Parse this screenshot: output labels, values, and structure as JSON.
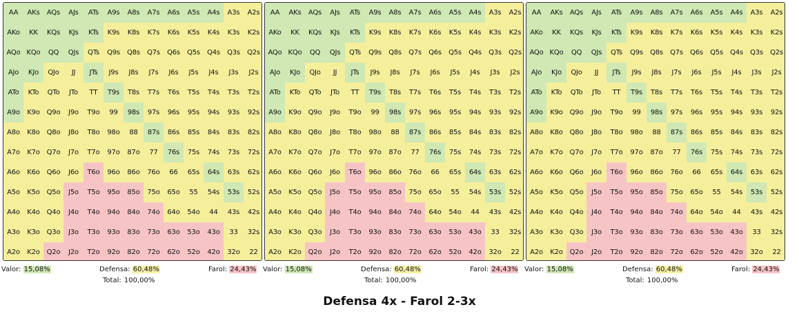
{
  "ranks": [
    "A",
    "K",
    "Q",
    "J",
    "T",
    "9",
    "8",
    "7",
    "6",
    "5",
    "4",
    "3",
    "2"
  ],
  "colors": {
    "valor": "#cfe8b4",
    "defensa": "#f5ef9c",
    "farol": "#f7c4c6",
    "border": "#333333"
  },
  "legend_keys": {
    "v": "valor",
    "d": "defensa",
    "f": "farol"
  },
  "color_map": [
    "vvvvvvvvvvvdd",
    "vvvvvdddddddd",
    "vvvvddddddddd",
    "vvddvdddddddd",
    "vddddvddddddd",
    "vdddddvdddddd",
    "dddddddvddddd",
    "ddddddddvdddd",
    "ddddfdddddvdd",
    "dddffffddddvd",
    "dddfffffddddd",
    "dddffffffffdd",
    "ddfffffffffdd"
  ],
  "panels": [
    {
      "stats": {
        "valor_label": "Valor:",
        "valor_value": "15,08%",
        "defensa_label": "Defensa:",
        "defensa_value": "60,48%",
        "farol_label": "Farol:",
        "farol_value": "24,43%",
        "total_label": "Total:",
        "total_value": "100,00%"
      }
    },
    {
      "stats": {
        "valor_label": "Valor:",
        "valor_value": "15,08%",
        "defensa_label": "Defensa:",
        "defensa_value": "60,48%",
        "farol_label": "Farol:",
        "farol_value": "24,43%",
        "total_label": "Total:",
        "total_value": "100,00%"
      }
    },
    {
      "stats": {
        "valor_label": "Valor:",
        "valor_value": "15,08%",
        "defensa_label": "Defensa:",
        "defensa_value": "60,48%",
        "farol_label": "Farol:",
        "farol_value": "24,43%",
        "total_label": "Total:",
        "total_value": "100,00%"
      }
    }
  ],
  "caption": "Defensa 4x - Farol 2-3x"
}
